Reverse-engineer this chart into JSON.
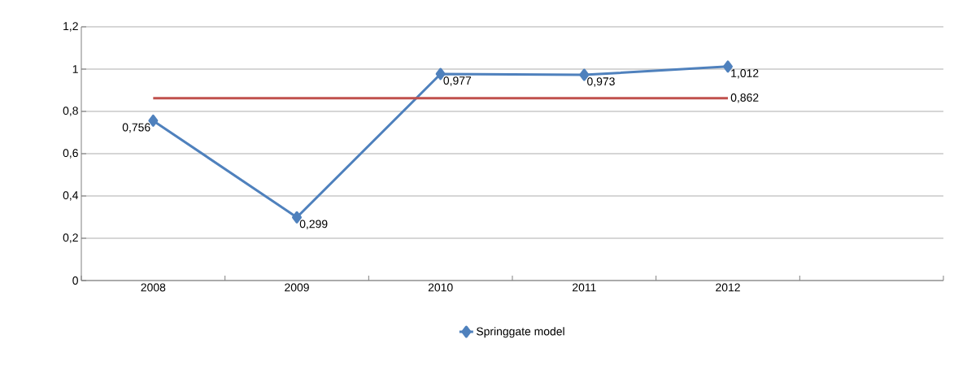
{
  "chart_data": {
    "type": "line",
    "categories": [
      "2008",
      "2009",
      "2010",
      "2011",
      "2012",
      null
    ],
    "series": [
      {
        "name": "Springgate model",
        "color": "#4f81bd",
        "marker": "diamond",
        "values": [
          0.756,
          0.299,
          0.977,
          0.973,
          1.012,
          null
        ],
        "value_labels": [
          "0,756",
          "0,299",
          "0,977",
          "0,973",
          "1,012",
          null
        ]
      },
      {
        "color": "#c0504d",
        "marker": "none",
        "values": [
          0.862,
          0.862,
          0.862,
          0.862,
          0.862,
          null
        ],
        "value_labels": [
          null,
          null,
          null,
          null,
          "0,862",
          null
        ]
      }
    ],
    "ylim": [
      0,
      1.2
    ],
    "yticks": [
      {
        "value": 0,
        "label": "0"
      },
      {
        "value": 0.2,
        "label": "0,2"
      },
      {
        "value": 0.4,
        "label": "0,4"
      },
      {
        "value": 0.6,
        "label": "0,6"
      },
      {
        "value": 0.8,
        "label": "0,8"
      },
      {
        "value": 1,
        "label": "1"
      },
      {
        "value": 1.2,
        "label": "1,2"
      }
    ],
    "grid": "y",
    "legend": "bottom"
  }
}
